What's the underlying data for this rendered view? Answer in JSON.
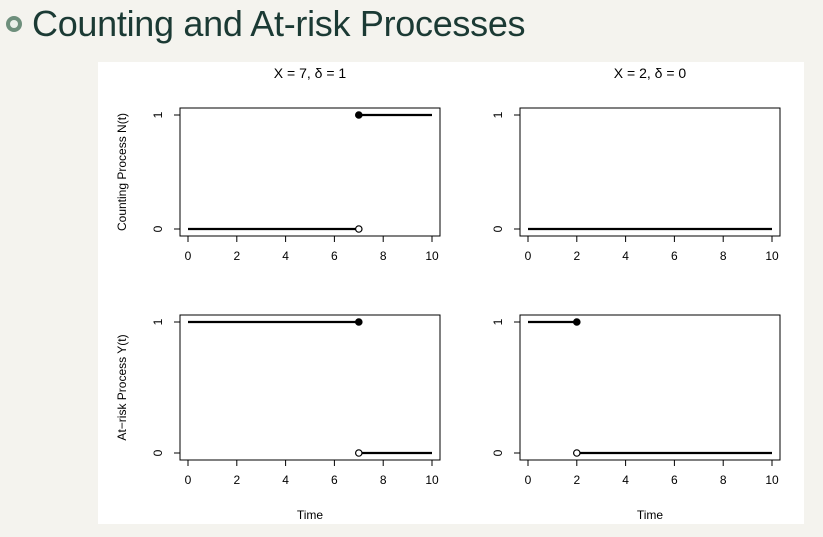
{
  "slide": {
    "title": "Counting and At-risk Processes"
  },
  "icons": {
    "bullet": "circle-bullet-icon"
  },
  "chart_data": [
    {
      "type": "line",
      "panel": "top-left",
      "title": "X = 7, δ = 1",
      "ylabel": "Counting Process N(t)",
      "xlabel": "",
      "xlim": [
        0,
        10
      ],
      "ylim": [
        0,
        1
      ],
      "x_ticks": [
        "0",
        "2",
        "4",
        "6",
        "8",
        "10"
      ],
      "y_ticks": [
        "0",
        "1"
      ],
      "segments": [
        {
          "x": [
            0,
            7
          ],
          "y": 0,
          "end": "open"
        },
        {
          "x": [
            7,
            10
          ],
          "y": 1,
          "start": "closed"
        }
      ]
    },
    {
      "type": "line",
      "panel": "top-right",
      "title": "X = 2, δ = 0",
      "ylabel": "",
      "xlabel": "",
      "xlim": [
        0,
        10
      ],
      "ylim": [
        0,
        1
      ],
      "x_ticks": [
        "0",
        "2",
        "4",
        "6",
        "8",
        "10"
      ],
      "y_ticks": [
        "0",
        "1"
      ],
      "segments": [
        {
          "x": [
            0,
            10
          ],
          "y": 0
        }
      ]
    },
    {
      "type": "line",
      "panel": "bottom-left",
      "title": "",
      "ylabel": "At−risk Process Y(t)",
      "xlabel": "Time",
      "xlim": [
        0,
        10
      ],
      "ylim": [
        0,
        1
      ],
      "x_ticks": [
        "0",
        "2",
        "4",
        "6",
        "8",
        "10"
      ],
      "y_ticks": [
        "0",
        "1"
      ],
      "segments": [
        {
          "x": [
            0,
            7
          ],
          "y": 1,
          "end": "closed"
        },
        {
          "x": [
            7,
            10
          ],
          "y": 0,
          "start": "open"
        }
      ]
    },
    {
      "type": "line",
      "panel": "bottom-right",
      "title": "",
      "ylabel": "",
      "xlabel": "Time",
      "xlim": [
        0,
        10
      ],
      "ylim": [
        0,
        1
      ],
      "x_ticks": [
        "0",
        "2",
        "4",
        "6",
        "8",
        "10"
      ],
      "y_ticks": [
        "0",
        "1"
      ],
      "segments": [
        {
          "x": [
            0,
            2
          ],
          "y": 1,
          "end": "closed"
        },
        {
          "x": [
            2,
            10
          ],
          "y": 0,
          "start": "open"
        }
      ]
    }
  ]
}
